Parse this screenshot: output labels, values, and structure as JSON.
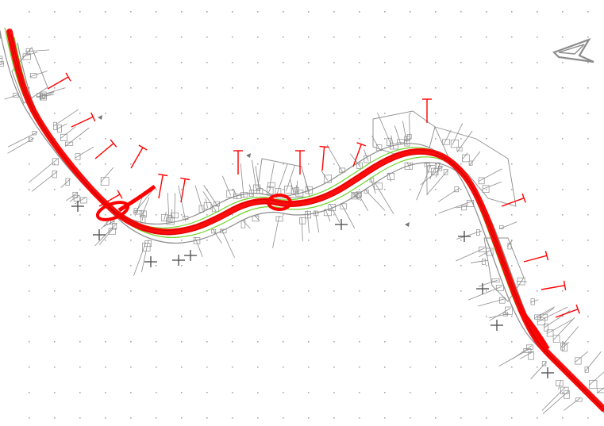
{
  "drawing": {
    "background": "#ffffff",
    "colors": {
      "route": "#ff0000",
      "parcels": "#8c8c8c",
      "edge_lines": "#6fd42a",
      "grid_marks": "#a8a8a8"
    },
    "layers": [
      "grid-marks",
      "parcel-lines",
      "edge-lines",
      "route-alignment",
      "cross-sections",
      "north-arrow"
    ],
    "icons": [
      "north-arrow-icon",
      "orientation-triangle-icon"
    ]
  }
}
